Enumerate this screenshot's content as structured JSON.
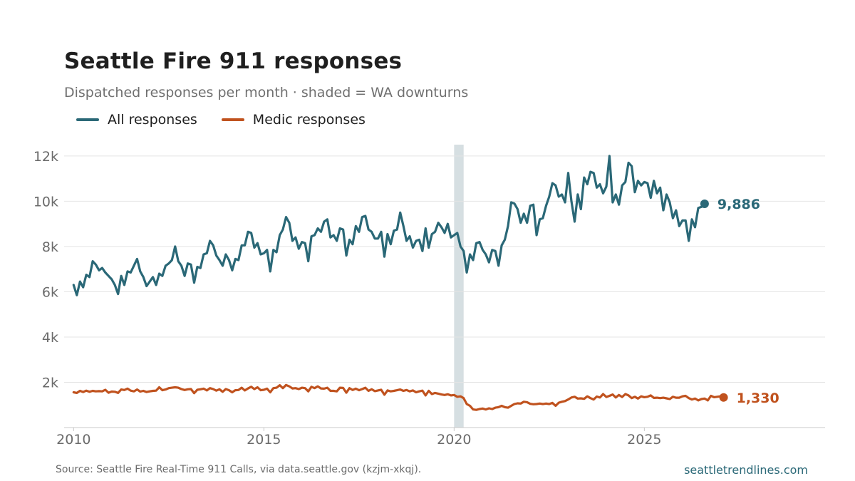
{
  "title": "Seattle Fire 911 responses",
  "subtitle": "Dispatched responses per month · shaded = WA downturns",
  "legend": [
    {
      "label": "All responses",
      "color": "#2a6877"
    },
    {
      "label": "Medic responses",
      "color": "#c0521e"
    }
  ],
  "footer": {
    "source": "Source: Seattle Fire Real-Time 911 Calls, via data.seattle.gov (kzjm-xkqj).",
    "site": "seattletrendlines.com"
  },
  "chart_data": {
    "type": "line",
    "title": "Seattle Fire 911 responses",
    "subtitle": "Dispatched responses per month · shaded = WA downturns",
    "xlabel": "",
    "ylabel": "",
    "x_range": [
      2009.75,
      2029.75
    ],
    "ylim": [
      0,
      12500
    ],
    "x_ticks": [
      2010,
      2015,
      2020,
      2025
    ],
    "x_tick_labels": [
      "2010",
      "2015",
      "2020",
      "2025"
    ],
    "y_ticks": [
      2000,
      4000,
      6000,
      8000,
      10000,
      12000
    ],
    "y_tick_labels": [
      "2k",
      "4k",
      "6k",
      "8k",
      "10k",
      "12k"
    ],
    "grid": true,
    "legend_position": "top-left",
    "x_start_year": 2010,
    "x_start_month": 1,
    "shaded_periods": [
      {
        "start": 2020.0,
        "end": 2020.25,
        "label": "WA downturn"
      }
    ],
    "series": [
      {
        "name": "All responses",
        "color": "#2a6877",
        "end_label": "9,886",
        "values": [
          6300,
          5850,
          6450,
          6200,
          6750,
          6650,
          7350,
          7200,
          6950,
          7050,
          6850,
          6700,
          6550,
          6300,
          5900,
          6700,
          6300,
          6900,
          6850,
          7150,
          7450,
          6900,
          6650,
          6250,
          6450,
          6650,
          6300,
          6800,
          6700,
          7150,
          7250,
          7400,
          8000,
          7350,
          7150,
          6700,
          7250,
          7200,
          6400,
          7100,
          7050,
          7650,
          7700,
          8250,
          8050,
          7600,
          7400,
          7150,
          7650,
          7400,
          6950,
          7450,
          7400,
          8050,
          8050,
          8650,
          8600,
          7950,
          8150,
          7650,
          7700,
          7850,
          6900,
          7850,
          7750,
          8500,
          8750,
          9300,
          9050,
          8250,
          8400,
          7900,
          8200,
          8150,
          7350,
          8450,
          8500,
          8800,
          8650,
          9100,
          9200,
          8400,
          8500,
          8250,
          8800,
          8750,
          7600,
          8300,
          8100,
          8900,
          8650,
          9300,
          9350,
          8750,
          8650,
          8350,
          8350,
          8650,
          7550,
          8550,
          8100,
          8700,
          8750,
          9500,
          8900,
          8250,
          8450,
          7950,
          8250,
          8300,
          7800,
          8800,
          7950,
          8550,
          8650,
          9050,
          8850,
          8600,
          9000,
          8400,
          8500,
          8600,
          8000,
          7800,
          6850,
          7650,
          7400,
          8150,
          8200,
          7850,
          7650,
          7300,
          7850,
          7800,
          7150,
          8050,
          8300,
          8900,
          9950,
          9900,
          9650,
          9050,
          9450,
          9050,
          9800,
          9850,
          8500,
          9200,
          9250,
          9800,
          10200,
          10800,
          10700,
          10200,
          10300,
          9950,
          11250,
          10000,
          9100,
          10300,
          9650,
          11050,
          10750,
          11300,
          11250,
          10600,
          10750,
          10350,
          10650,
          12000,
          9950,
          10300,
          9850,
          10700,
          10850,
          11700,
          11550,
          10400,
          10900,
          10700,
          10850,
          10800,
          10150,
          10900,
          10350,
          10600,
          9600,
          10300,
          9950,
          9250,
          9600,
          8900,
          9150,
          9150,
          8250,
          9200,
          8850,
          9700,
          9750,
          9886
        ]
      },
      {
        "name": "Medic responses",
        "color": "#c0521e",
        "end_label": "1,330",
        "values": [
          1560,
          1530,
          1620,
          1570,
          1630,
          1580,
          1620,
          1600,
          1610,
          1600,
          1670,
          1540,
          1590,
          1580,
          1530,
          1680,
          1660,
          1720,
          1630,
          1600,
          1680,
          1590,
          1620,
          1570,
          1600,
          1620,
          1630,
          1780,
          1650,
          1680,
          1740,
          1760,
          1780,
          1760,
          1700,
          1660,
          1690,
          1700,
          1520,
          1670,
          1690,
          1720,
          1640,
          1740,
          1700,
          1630,
          1690,
          1580,
          1700,
          1650,
          1560,
          1650,
          1660,
          1760,
          1640,
          1730,
          1800,
          1700,
          1780,
          1650,
          1670,
          1720,
          1560,
          1740,
          1760,
          1870,
          1740,
          1880,
          1820,
          1730,
          1740,
          1700,
          1760,
          1740,
          1600,
          1800,
          1740,
          1820,
          1730,
          1720,
          1760,
          1620,
          1620,
          1600,
          1760,
          1750,
          1540,
          1740,
          1660,
          1720,
          1650,
          1700,
          1760,
          1620,
          1690,
          1610,
          1640,
          1670,
          1450,
          1640,
          1600,
          1620,
          1650,
          1680,
          1620,
          1660,
          1600,
          1640,
          1560,
          1600,
          1630,
          1420,
          1620,
          1480,
          1530,
          1500,
          1460,
          1440,
          1470,
          1420,
          1440,
          1360,
          1380,
          1300,
          1040,
          960,
          800,
          780,
          820,
          840,
          800,
          850,
          820,
          880,
          900,
          960,
          900,
          880,
          960,
          1040,
          1070,
          1060,
          1140,
          1120,
          1050,
          1030,
          1040,
          1060,
          1040,
          1060,
          1040,
          1090,
          960,
          1100,
          1140,
          1170,
          1240,
          1330,
          1360,
          1280,
          1290,
          1270,
          1380,
          1300,
          1240,
          1370,
          1330,
          1480,
          1350,
          1400,
          1460,
          1330,
          1440,
          1350,
          1480,
          1420,
          1300,
          1360,
          1280,
          1380,
          1340,
          1360,
          1420,
          1310,
          1320,
          1300,
          1320,
          1290,
          1260,
          1360,
          1320,
          1320,
          1380,
          1400,
          1300,
          1240,
          1280,
          1200,
          1260,
          1280,
          1200,
          1400,
          1340,
          1360,
          1380,
          1330
        ]
      }
    ]
  }
}
